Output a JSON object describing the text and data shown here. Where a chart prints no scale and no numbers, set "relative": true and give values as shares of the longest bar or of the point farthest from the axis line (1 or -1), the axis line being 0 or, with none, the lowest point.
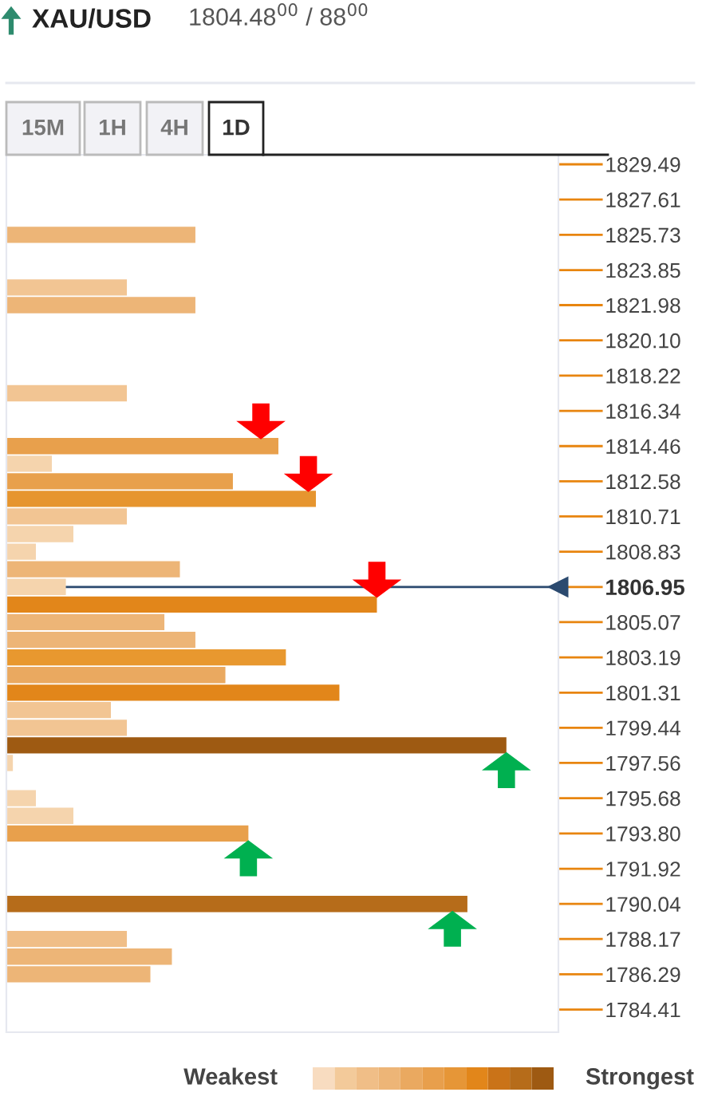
{
  "chart_data": {
    "type": "bar",
    "orientation": "horizontal",
    "relative": true,
    "tick_labels": "y",
    "title": "XAU/USD",
    "subtitle": "1804.48$^{00}$ / 88$^{00}$",
    "x": [
      1825.73,
      1822.92,
      1821.98,
      1817.28,
      1814.46,
      1813.52,
      1812.58,
      1811.65,
      1810.71,
      1809.77,
      1808.83,
      1807.89,
      1806.95,
      1806.01,
      1805.07,
      1804.13,
      1803.19,
      1802.25,
      1801.31,
      1800.38,
      1799.44,
      1798.5,
      1797.56,
      1795.68,
      1794.74,
      1793.8,
      1790.04,
      1788.17,
      1787.23,
      1786.29
    ],
    "values": [
      0.378,
      0.241,
      0.378,
      0.241,
      0.544,
      0.091,
      0.453,
      0.619,
      0.241,
      0.134,
      0.059,
      0.347,
      0.119,
      0.741,
      0.316,
      0.378,
      0.559,
      0.438,
      0.666,
      0.209,
      0.241,
      1,
      0.013,
      0.059,
      0.134,
      0.484,
      0.922,
      0.241,
      0.331,
      0.288
    ],
    "colors": [
      "#edb577",
      "#f2c593",
      "#edb577",
      "#f2c593",
      "#e8a04c",
      "#f5d4ad",
      "#e8a04c",
      "#e6952f",
      "#f2c593",
      "#f5d4ad",
      "#f5d4ad",
      "#edb577",
      "#f5d4ad",
      "#e2861a",
      "#edb577",
      "#edb577",
      "#e8982f",
      "#eaa960",
      "#e2861a",
      "#f2c593",
      "#f2c593",
      "#9e5a12",
      "#f5d4ad",
      "#f5d4ad",
      "#f5d4ad",
      "#e8a04c",
      "#b66c1a",
      "#f0be87",
      "#edb577",
      "#edb577"
    ],
    "ylim": [
      1783.2,
      1830.0
    ],
    "yticks": [
      1829.49,
      1827.61,
      1825.73,
      1823.85,
      1821.98,
      {
        "value": 1820.1,
        "label": "1820.10"
      },
      1818.22,
      1816.34,
      1814.46,
      1812.58,
      1810.71,
      1808.83,
      1806.95,
      1805.07,
      1803.19,
      1801.31,
      1799.44,
      1797.56,
      1795.68,
      {
        "value": 1793.8,
        "label": "1793.80"
      },
      1791.92,
      1790.04,
      1788.17,
      1786.29,
      1784.41
    ],
    "ref_lines": [
      {
        "axis": "y",
        "value": 1806.95,
        "color": "#2b4a6f"
      }
    ],
    "annotations": [
      "15M",
      "1H",
      "4H",
      "1D",
      "Weakest",
      "Strongest"
    ]
  }
}
